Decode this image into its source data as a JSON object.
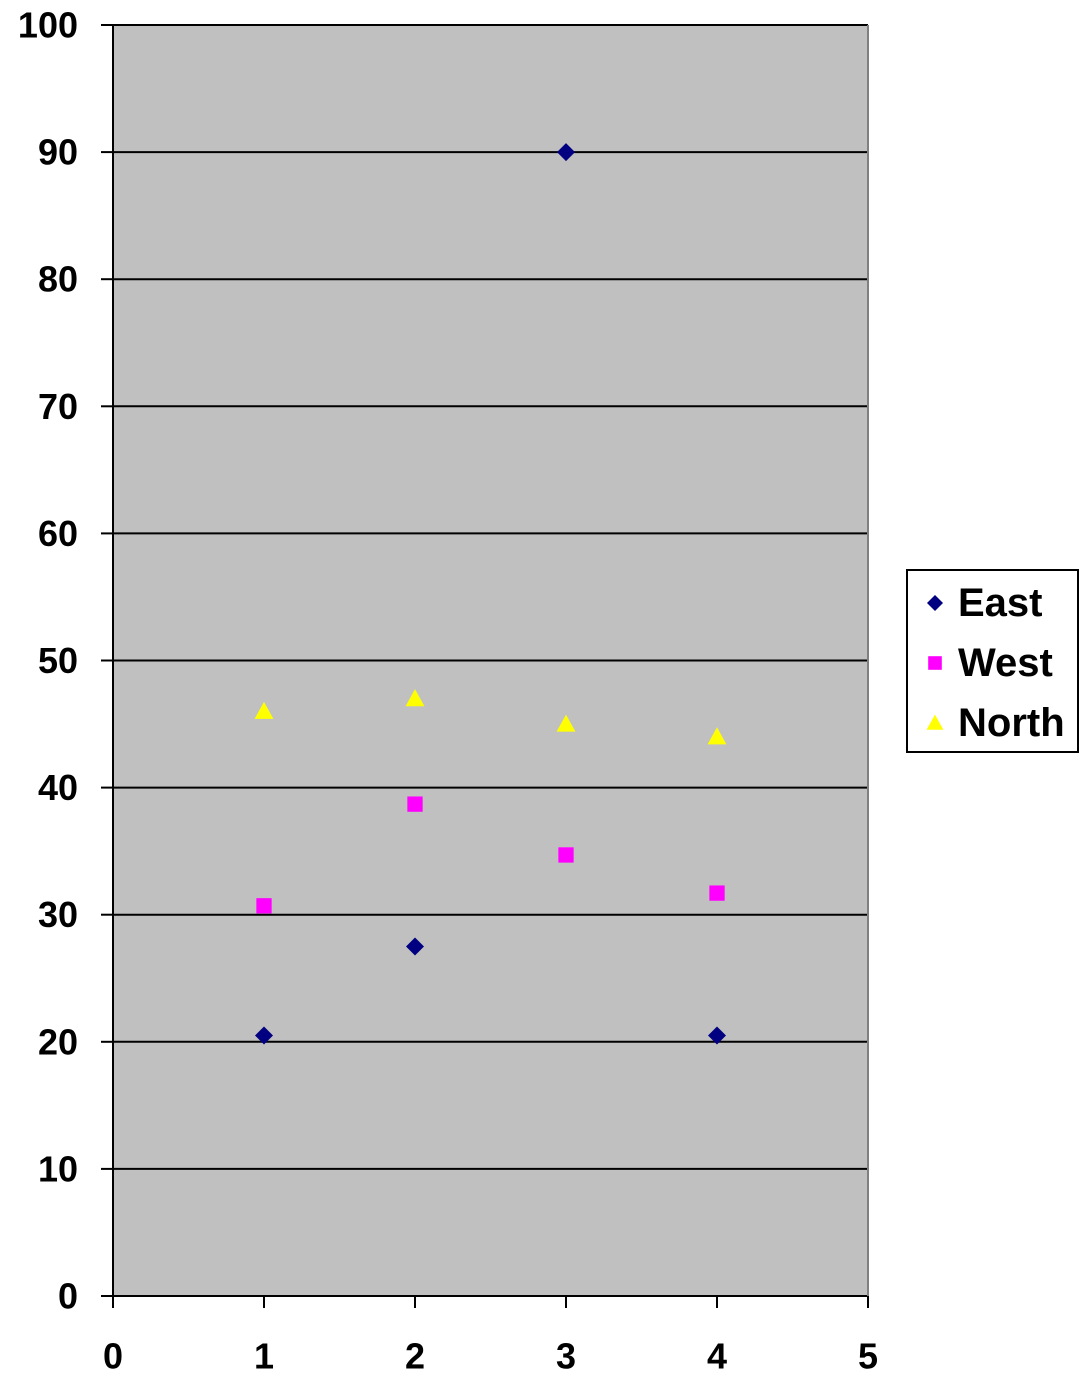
{
  "chart_data": {
    "type": "scatter",
    "title": "",
    "xlabel": "",
    "ylabel": "",
    "xlim": [
      0,
      5
    ],
    "ylim": [
      0,
      100
    ],
    "x_ticks": [
      0,
      1,
      2,
      3,
      4,
      5
    ],
    "y_ticks": [
      0,
      10,
      20,
      30,
      40,
      50,
      60,
      70,
      80,
      90,
      100
    ],
    "grid": "horizontal major gridlines",
    "plot_background": "#C0C0C0",
    "legend_position": "right",
    "series": [
      {
        "name": "East",
        "marker": "diamond",
        "color": "#000080",
        "x": [
          1,
          2,
          3,
          4
        ],
        "y": [
          20.5,
          27.5,
          90,
          20.5
        ]
      },
      {
        "name": "West",
        "marker": "square",
        "color": "#FF00FF",
        "x": [
          1,
          2,
          3,
          4
        ],
        "y": [
          30.7,
          38.7,
          34.7,
          31.7
        ]
      },
      {
        "name": "North",
        "marker": "triangle",
        "color": "#FFFF00",
        "x": [
          1,
          2,
          3,
          4
        ],
        "y": [
          46,
          47,
          45,
          44
        ]
      }
    ]
  }
}
